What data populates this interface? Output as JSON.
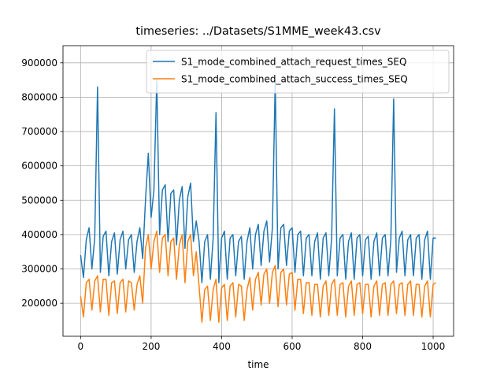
{
  "chart_data": {
    "type": "line",
    "title": "timeseries: ../Datasets/S1MME_week43.csv",
    "x_label": "time",
    "x": [
      0,
      8,
      16,
      24,
      32,
      40,
      48,
      56,
      64,
      72,
      80,
      88,
      96,
      104,
      112,
      120,
      128,
      136,
      144,
      152,
      160,
      168,
      176,
      184,
      192,
      200,
      208,
      216,
      224,
      232,
      240,
      248,
      256,
      264,
      272,
      280,
      288,
      296,
      304,
      312,
      320,
      328,
      336,
      344,
      352,
      360,
      368,
      376,
      384,
      392,
      400,
      408,
      416,
      424,
      432,
      440,
      448,
      456,
      464,
      472,
      480,
      488,
      496,
      504,
      512,
      520,
      528,
      536,
      544,
      552,
      560,
      568,
      576,
      584,
      592,
      600,
      608,
      616,
      624,
      632,
      640,
      648,
      656,
      664,
      672,
      680,
      688,
      696,
      704,
      712,
      720,
      728,
      736,
      744,
      752,
      760,
      768,
      776,
      784,
      792,
      800,
      808,
      816,
      824,
      832,
      840,
      848,
      856,
      864,
      872,
      880,
      888,
      896,
      904,
      912,
      920,
      928,
      936,
      944,
      952,
      960,
      968,
      976,
      984,
      992,
      1000,
      1008
    ],
    "series": [
      {
        "name": "S1_mode_combined_attach_request_times_SEQ",
        "color": "#1f77b4",
        "values": [
          340000,
          275000,
          385000,
          420000,
          300000,
          390000,
          830000,
          290000,
          395000,
          410000,
          280000,
          380000,
          405000,
          285000,
          385000,
          410000,
          300000,
          385000,
          400000,
          290000,
          380000,
          420000,
          330000,
          500000,
          637000,
          450000,
          530000,
          850000,
          400000,
          530000,
          545000,
          380000,
          520000,
          530000,
          370000,
          500000,
          540000,
          360000,
          510000,
          550000,
          380000,
          440000,
          380000,
          260000,
          380000,
          400000,
          270000,
          390000,
          755000,
          260000,
          390000,
          410000,
          270000,
          390000,
          400000,
          280000,
          380000,
          395000,
          270000,
          380000,
          420000,
          300000,
          400000,
          430000,
          310000,
          410000,
          440000,
          320000,
          420000,
          850000,
          300000,
          420000,
          430000,
          310000,
          410000,
          420000,
          290000,
          400000,
          410000,
          280000,
          390000,
          400000,
          280000,
          380000,
          405000,
          270000,
          390000,
          405000,
          280000,
          390000,
          766000,
          280000,
          390000,
          400000,
          270000,
          380000,
          405000,
          270000,
          390000,
          400000,
          280000,
          385000,
          395000,
          270000,
          380000,
          405000,
          280000,
          390000,
          400000,
          280000,
          385000,
          795000,
          290000,
          390000,
          410000,
          280000,
          385000,
          400000,
          280000,
          390000,
          400000,
          270000,
          385000,
          410000,
          270000,
          390000,
          390000
        ]
      },
      {
        "name": "S1_mode_combined_attach_success_times_SEQ",
        "color": "#ff7f0e",
        "values": [
          220000,
          160000,
          260000,
          270000,
          180000,
          265000,
          280000,
          175000,
          270000,
          270000,
          165000,
          260000,
          265000,
          170000,
          260000,
          270000,
          175000,
          265000,
          260000,
          180000,
          255000,
          280000,
          200000,
          360000,
          400000,
          300000,
          380000,
          410000,
          290000,
          390000,
          400000,
          280000,
          380000,
          390000,
          270000,
          370000,
          400000,
          260000,
          380000,
          400000,
          280000,
          350000,
          250000,
          145000,
          240000,
          250000,
          150000,
          240000,
          270000,
          145000,
          245000,
          255000,
          150000,
          250000,
          260000,
          160000,
          255000,
          250000,
          150000,
          240000,
          275000,
          180000,
          270000,
          290000,
          195000,
          285000,
          300000,
          200000,
          290000,
          310000,
          190000,
          290000,
          300000,
          195000,
          285000,
          290000,
          180000,
          270000,
          270000,
          170000,
          260000,
          260000,
          165000,
          255000,
          255000,
          160000,
          250000,
          265000,
          165000,
          255000,
          270000,
          165000,
          255000,
          260000,
          160000,
          250000,
          265000,
          165000,
          255000,
          260000,
          170000,
          255000,
          255000,
          160000,
          250000,
          265000,
          165000,
          255000,
          260000,
          165000,
          255000,
          265000,
          170000,
          255000,
          260000,
          165000,
          255000,
          265000,
          165000,
          255000,
          255000,
          160000,
          250000,
          265000,
          160000,
          255000,
          260000
        ]
      }
    ],
    "xlim": [
      -50,
      1058
    ],
    "ylim": [
      104000,
      950000
    ],
    "xticks": [
      0,
      200,
      400,
      600,
      800,
      1000
    ],
    "yticks": [
      200000,
      300000,
      400000,
      500000,
      600000,
      700000,
      800000,
      900000
    ],
    "grid": true,
    "legend": "upper right"
  }
}
